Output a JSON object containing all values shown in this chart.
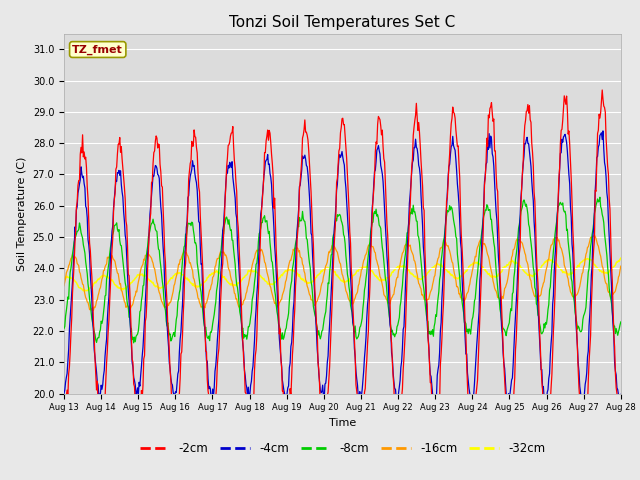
{
  "title": "Tonzi Soil Temperatures Set C",
  "xlabel": "Time",
  "ylabel": "Soil Temperature (C)",
  "ylim": [
    20.0,
    31.5
  ],
  "yticks": [
    20.0,
    21.0,
    22.0,
    23.0,
    24.0,
    25.0,
    26.0,
    27.0,
    28.0,
    29.0,
    30.0,
    31.0
  ],
  "x_tick_labels": [
    "Aug 13",
    "Aug 14",
    "Aug 15",
    "Aug 16",
    "Aug 17",
    "Aug 18",
    "Aug 19",
    "Aug 20",
    "Aug 21",
    "Aug 22",
    "Aug 23",
    "Aug 24",
    "Aug 25",
    "Aug 26",
    "Aug 27",
    "Aug 28"
  ],
  "colors": {
    "-2cm": "#ff0000",
    "-4cm": "#0000cc",
    "-8cm": "#00cc00",
    "-16cm": "#ff9900",
    "-32cm": "#ffff00"
  },
  "background_color": "#e8e8e8",
  "plot_bg_color": "#dcdcdc",
  "label_box_color": "#ffffcc",
  "label_box_text": "TZ_fmet",
  "label_box_text_color": "#990000",
  "title_fontsize": 11,
  "axis_fontsize": 8,
  "tick_fontsize": 7,
  "n_days": 15,
  "n_points_per_day": 48,
  "base_temp": 23.5,
  "base_trend": 0.04,
  "amp2": 4.3,
  "amp4": 3.5,
  "amp8": 1.8,
  "amp16": 0.85,
  "amp32": 0.22,
  "phase2": 0.0,
  "phase4": 0.18,
  "phase8": 0.65,
  "phase16": 1.55,
  "phase32": 2.6,
  "amp_growth2": 0.018,
  "amp_growth4": 0.016,
  "amp_growth8": 0.012,
  "amp_growth16": 0.01,
  "amp_growth32": 0.005
}
